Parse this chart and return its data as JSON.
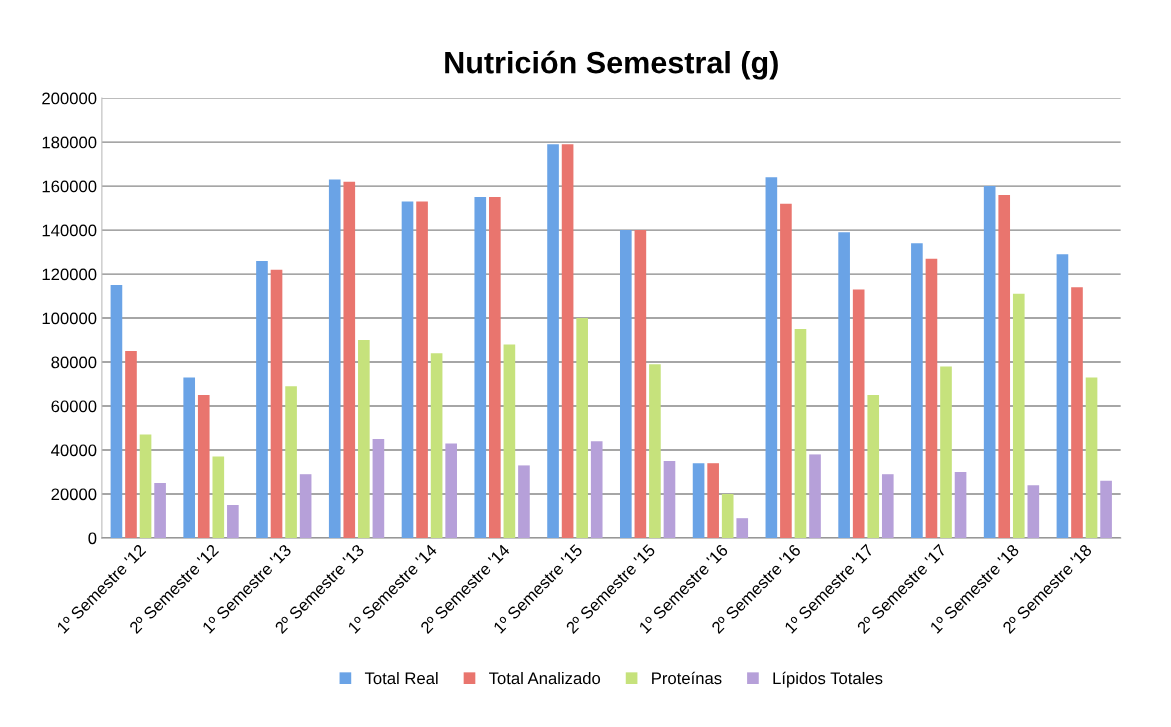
{
  "chart_data": {
    "type": "bar",
    "title": "Nutrición Semestral (g)",
    "categories": [
      "1º Semestre '12",
      "2º Semestre '12",
      "1º Semestre '13",
      "2º Semestre '13",
      "1º Semestre '14",
      "2º Semestre '14",
      "1º Semestre '15",
      "2º Semestre '15",
      "1º Semestre '16",
      "2º Semestre '16",
      "1º Semestre '17",
      "2º Semestre '17",
      "1º Semestre '18",
      "2º Semestre '18"
    ],
    "series": [
      {
        "name": "Total Real",
        "color": "#6aa3e6",
        "values": [
          115000,
          73000,
          126000,
          163000,
          153000,
          155000,
          179000,
          140000,
          34000,
          164000,
          139000,
          134000,
          160000,
          129000
        ]
      },
      {
        "name": "Total Analizado",
        "color": "#e9756e",
        "values": [
          85000,
          65000,
          122000,
          162000,
          153000,
          155000,
          179000,
          140000,
          34000,
          152000,
          113000,
          127000,
          156000,
          114000
        ]
      },
      {
        "name": "Proteínas",
        "color": "#c6e27c",
        "values": [
          47000,
          37000,
          69000,
          90000,
          84000,
          88000,
          100000,
          79000,
          20000,
          95000,
          65000,
          78000,
          111000,
          73000
        ]
      },
      {
        "name": "Lípidos Totales",
        "color": "#b6a0d9",
        "values": [
          25000,
          15000,
          29000,
          45000,
          43000,
          33000,
          44000,
          35000,
          9000,
          38000,
          29000,
          30000,
          24000,
          26000
        ]
      }
    ],
    "ylim": [
      0,
      200000
    ],
    "yticks": [
      0,
      20000,
      40000,
      60000,
      80000,
      100000,
      120000,
      140000,
      160000,
      180000,
      200000
    ],
    "grid": "y",
    "legend": "bottom"
  }
}
